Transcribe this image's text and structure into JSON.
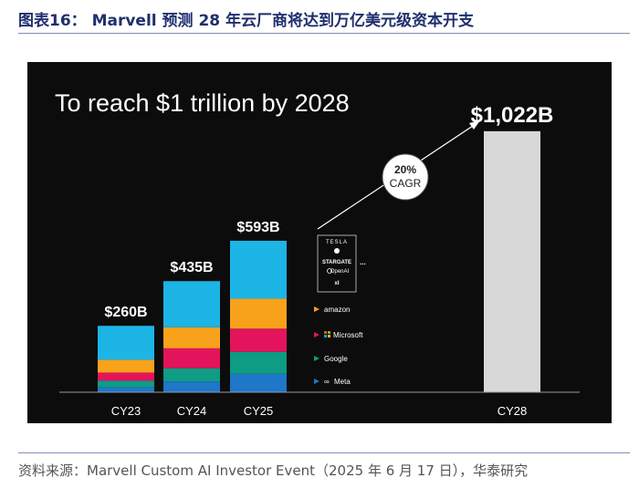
{
  "figure": {
    "title": "图表16： Marvell 预测 28 年云厂商将达到万亿美元级资本开支",
    "source": "资料来源：Marvell Custom AI Investor Event（2025 年 6 月 17 日），华泰研究"
  },
  "chart_data": {
    "type": "bar",
    "title": "To reach $1 trillion by 2028",
    "categories": [
      "CY23",
      "CY24",
      "CY25",
      "CY28"
    ],
    "totals": [
      260,
      435,
      593,
      1022
    ],
    "total_labels": [
      "$260B",
      "$435B",
      "$593B",
      "$1,022B"
    ],
    "ylabel": "",
    "series_colors": {
      "Meta": "#1e77c9",
      "Google": "#0e9c84",
      "Microsoft": "#e3145b",
      "Amazon": "#f7a21a",
      "Others": "#1db4e6",
      "CY28": "#d8d8d8"
    },
    "segments": [
      {
        "category": "CY23",
        "values": {
          "Meta": 20,
          "Google": 25,
          "Microsoft": 32,
          "Amazon": 50,
          "Others": 133
        }
      },
      {
        "category": "CY24",
        "values": {
          "Meta": 42,
          "Google": 52,
          "Microsoft": 78,
          "Amazon": 82,
          "Others": 181
        }
      },
      {
        "category": "CY25",
        "values": {
          "Meta": 72,
          "Google": 86,
          "Microsoft": 91,
          "Amazon": 117,
          "Others": 227
        }
      },
      {
        "category": "CY28",
        "values": {
          "Total": 1022
        }
      }
    ],
    "annotation": {
      "rate": "20%",
      "label": "CAGR"
    },
    "company_labels": {
      "tesla": "TESLA",
      "apple": "",
      "stargate": "STARGATE",
      "openai": "OpenAI",
      "xai": "xI",
      "ellipsis": "...",
      "amazon": "amazon",
      "microsoft": "Microsoft",
      "google": "Google",
      "meta": "Meta"
    }
  }
}
